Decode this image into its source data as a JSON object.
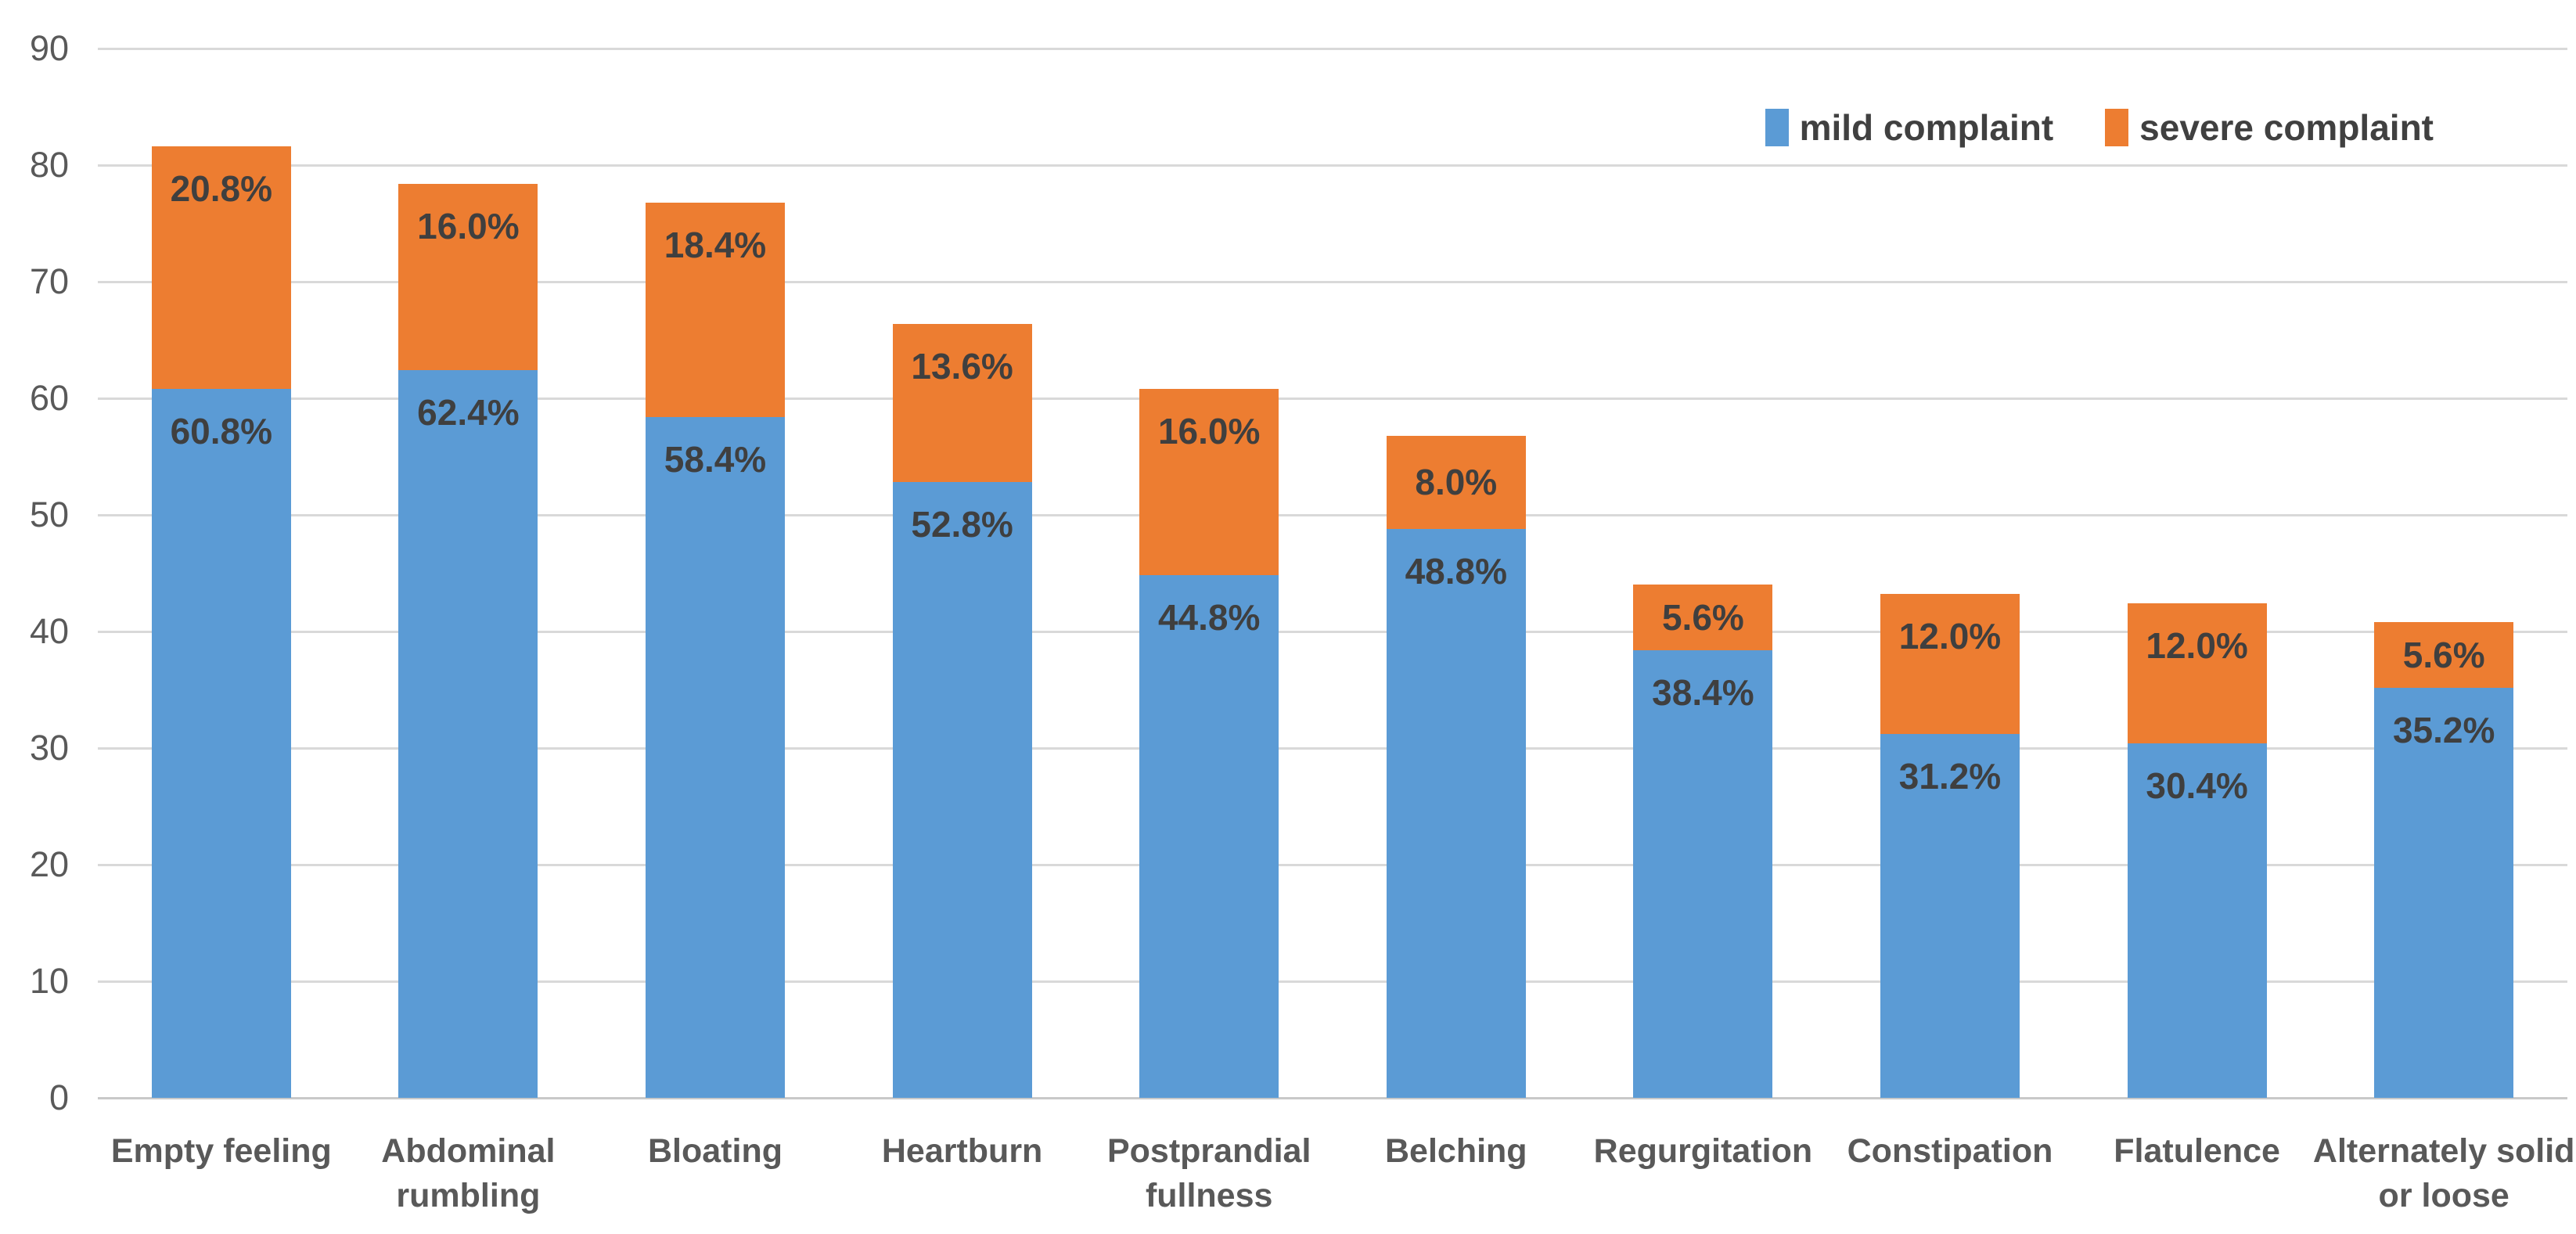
{
  "legend": {
    "items": [
      {
        "label": "mild complaint",
        "color": "#5b9bd5"
      },
      {
        "label": "severe complaint",
        "color": "#ed7d31"
      }
    ]
  },
  "chart_data": {
    "type": "bar",
    "stacked": true,
    "title": "",
    "xlabel": "",
    "ylabel": "",
    "categories": [
      "Empty feeling",
      "Abdominal rumbling",
      "Bloating",
      "Heartburn",
      "Postprandial fullness",
      "Belching",
      "Regurgitation",
      "Constipation",
      "Flatulence",
      "Alternately solid or loose"
    ],
    "series": [
      {
        "name": "mild complaint",
        "color": "#5b9bd5",
        "values": [
          60.8,
          62.4,
          58.4,
          52.8,
          44.8,
          48.8,
          38.4,
          31.2,
          30.4,
          35.2
        ],
        "labels": [
          "60.8%",
          "62.4%",
          "58.4%",
          "52.8%",
          "44.8%",
          "48.8%",
          "38.4%",
          "31.2%",
          "30.4%",
          "35.2%"
        ]
      },
      {
        "name": "severe complaint",
        "color": "#ed7d31",
        "values": [
          20.8,
          16.0,
          18.4,
          13.6,
          16.0,
          8.0,
          5.6,
          12.0,
          12.0,
          5.6
        ],
        "labels": [
          "20.8%",
          "16.0%",
          "18.4%",
          "13.6%",
          "16.0%",
          "8.0%",
          "5.6%",
          "12.0%",
          "12.0%",
          "5.6%"
        ]
      }
    ],
    "totals": [
      81.6,
      78.4,
      76.8,
      66.4,
      60.8,
      56.8,
      44.0,
      43.2,
      42.4,
      40.8
    ],
    "yticks": [
      "0",
      "10",
      "20",
      "30",
      "40",
      "50",
      "60",
      "70",
      "80",
      "90"
    ],
    "ylim": [
      0,
      90
    ],
    "grid": true,
    "gridline_color": "#d9d9d9",
    "label_color": "#3f3f3f",
    "axis_text_color": "#595959",
    "legend_position": "top-right"
  }
}
